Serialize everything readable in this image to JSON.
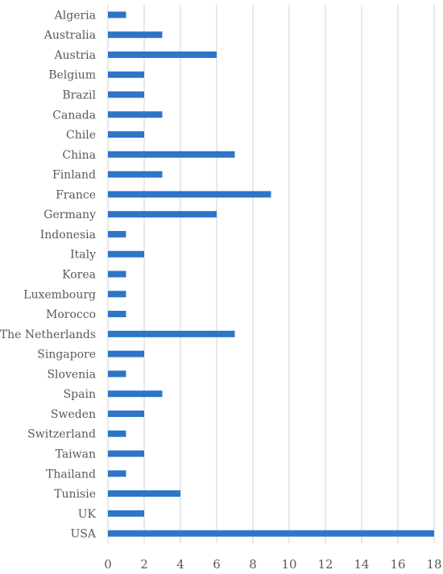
{
  "chart_data": {
    "type": "bar",
    "orientation": "horizontal",
    "categories": [
      "Algeria",
      "Australia",
      "Austria",
      "Belgium",
      "Brazil",
      "Canada",
      "Chile",
      "China",
      "Finland",
      "France",
      "Germany",
      "Indonesia",
      "Italy",
      "Korea",
      "Luxembourg",
      "Morocco",
      "The Netherlands",
      "Singapore",
      "Slovenia",
      "Spain",
      "Sweden",
      "Switzerland",
      "Taiwan",
      "Thailand",
      "Tunisie",
      "UK",
      "USA"
    ],
    "values": [
      1,
      3,
      6,
      2,
      2,
      3,
      2,
      7,
      3,
      9,
      6,
      1,
      2,
      1,
      1,
      1,
      7,
      2,
      1,
      3,
      2,
      1,
      2,
      1,
      4,
      2,
      18
    ],
    "xlim": [
      0,
      18
    ],
    "xticks": [
      "0",
      "2",
      "4",
      "6",
      "8",
      "10",
      "12",
      "14",
      "16",
      "18"
    ],
    "title": "",
    "xlabel": "",
    "ylabel": "",
    "grid": "vertical",
    "legend": "none",
    "bar_color": "#2E75C8",
    "grid_color": "#d0d0d0"
  }
}
